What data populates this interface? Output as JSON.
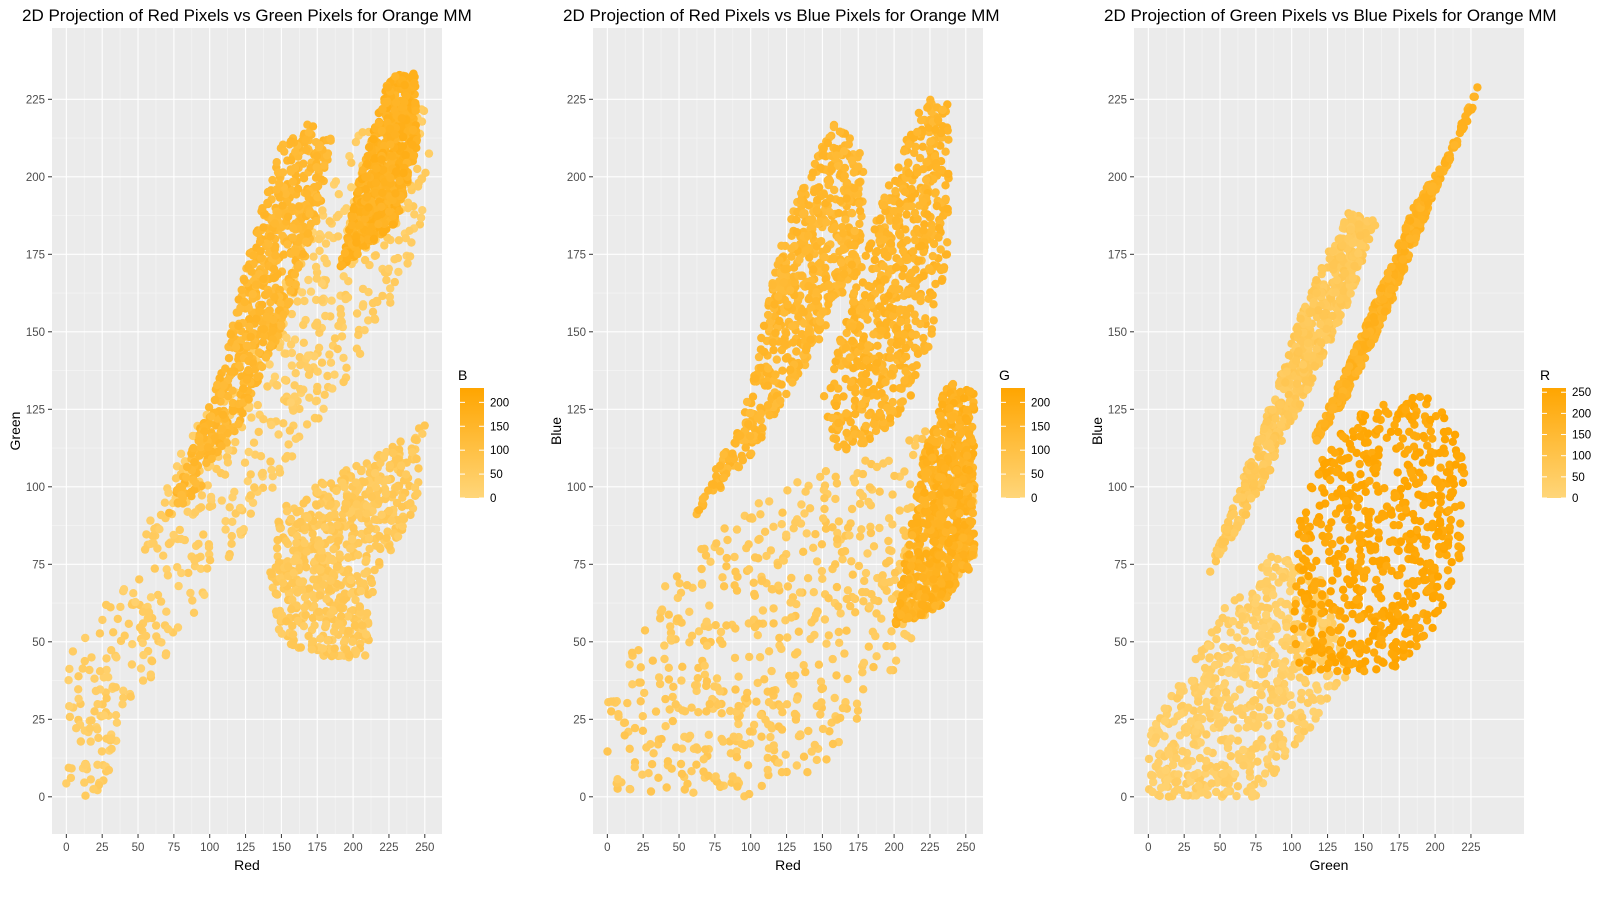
{
  "colors": {
    "low": "#ffd67a",
    "high": "#ffa500",
    "panel_bg": "#ebebeb",
    "grid": "#ffffff"
  },
  "chart_data": [
    {
      "type": "scatter",
      "title": "2D Projection of Red Pixels vs Green Pixels for Orange MM",
      "xlabel": "Red",
      "ylabel": "Green",
      "xlim": [
        -10,
        262
      ],
      "ylim": [
        -12,
        248
      ],
      "xticks": [
        0,
        25,
        50,
        75,
        100,
        125,
        150,
        175,
        200,
        225,
        250
      ],
      "yticks": [
        0,
        25,
        50,
        75,
        100,
        125,
        150,
        175,
        200,
        225
      ],
      "grid": true,
      "color_legend": {
        "title": "B",
        "min": 0,
        "max": 230,
        "ticks": [
          0,
          50,
          100,
          150,
          200
        ],
        "position": "right"
      },
      "clusters": [
        {
          "polygon": [
            [
              0,
              0
            ],
            [
              22,
              0
            ],
            [
              60,
              38
            ],
            [
              120,
              82
            ],
            [
              180,
              120
            ],
            [
              240,
              170
            ],
            [
              256,
              200
            ],
            [
              256,
              220
            ],
            [
              240,
              225
            ],
            [
              205,
              215
            ],
            [
              160,
              175
            ],
            [
              120,
              140
            ],
            [
              80,
              112
            ],
            [
              40,
              70
            ],
            [
              0,
              45
            ]
          ],
          "color": 40
        },
        {
          "polygon": [
            [
              70,
              90
            ],
            [
              110,
              140
            ],
            [
              130,
              180
            ],
            [
              150,
              210
            ],
            [
              170,
              218
            ],
            [
              185,
              212
            ],
            [
              175,
              185
            ],
            [
              150,
              150
            ],
            [
              120,
              120
            ],
            [
              95,
              100
            ]
          ],
          "color": 140
        },
        {
          "polygon": [
            [
              190,
              170
            ],
            [
              205,
              200
            ],
            [
              225,
              232
            ],
            [
              243,
              234
            ],
            [
              245,
              210
            ],
            [
              230,
              185
            ]
          ],
          "color": 170
        },
        {
          "polygon": [
            [
              150,
              95
            ],
            [
              215,
              110
            ],
            [
              250,
              120
            ],
            [
              245,
              95
            ],
            [
              215,
              70
            ],
            [
              210,
              45
            ],
            [
              180,
              45
            ],
            [
              150,
              50
            ],
            [
              140,
              70
            ]
          ],
          "color": 60
        }
      ]
    },
    {
      "type": "scatter",
      "title": "2D Projection of Red Pixels vs Blue Pixels for Orange MM",
      "xlabel": "Red",
      "ylabel": "Blue",
      "xlim": [
        -10,
        262
      ],
      "ylim": [
        -12,
        248
      ],
      "xticks": [
        0,
        25,
        50,
        75,
        100,
        125,
        150,
        175,
        200,
        225,
        250
      ],
      "yticks": [
        0,
        25,
        50,
        75,
        100,
        125,
        150,
        175,
        200,
        225
      ],
      "grid": true,
      "color_legend": {
        "title": "G",
        "min": 0,
        "max": 230,
        "ticks": [
          0,
          50,
          100,
          150,
          200
        ],
        "position": "right"
      },
      "clusters": [
        {
          "polygon": [
            [
              0,
              0
            ],
            [
              100,
              0
            ],
            [
              150,
              10
            ],
            [
              200,
              40
            ],
            [
              230,
              60
            ],
            [
              256,
              75
            ],
            [
              256,
              110
            ],
            [
              230,
              120
            ],
            [
              190,
              110
            ],
            [
              140,
              105
            ],
            [
              90,
              90
            ],
            [
              40,
              70
            ],
            [
              0,
              30
            ]
          ],
          "color": 60
        },
        {
          "polygon": [
            [
              200,
              55
            ],
            [
              230,
              60
            ],
            [
              256,
              75
            ],
            [
              256,
              130
            ],
            [
              238,
              135
            ],
            [
              220,
              110
            ]
          ],
          "color": 170
        },
        {
          "polygon": [
            [
              60,
              90
            ],
            [
              100,
              130
            ],
            [
              120,
              180
            ],
            [
              160,
              220
            ],
            [
              180,
              205
            ],
            [
              175,
              170
            ],
            [
              140,
              140
            ],
            [
              100,
              110
            ]
          ],
          "color": 140
        },
        {
          "polygon": [
            [
              150,
              130
            ],
            [
              190,
              190
            ],
            [
              220,
              225
            ],
            [
              238,
              225
            ],
            [
              238,
              175
            ],
            [
              220,
              135
            ],
            [
              190,
              115
            ],
            [
              160,
              110
            ]
          ],
          "color": 150
        }
      ]
    },
    {
      "type": "scatter",
      "title": "2D Projection of Green Pixels vs Blue Pixels for Orange MM",
      "xlabel": "Green",
      "ylabel": "Blue",
      "xlim": [
        -10,
        262
      ],
      "ylim": [
        -12,
        248
      ],
      "xticks": [
        0,
        25,
        50,
        75,
        100,
        125,
        150,
        175,
        200,
        225
      ],
      "yticks": [
        0,
        25,
        50,
        75,
        100,
        125,
        150,
        175,
        200,
        225
      ],
      "grid": true,
      "color_legend": {
        "title": "R",
        "min": 0,
        "max": 260,
        "ticks": [
          0,
          50,
          100,
          150,
          200,
          250
        ],
        "position": "right"
      },
      "clusters": [
        {
          "polygon": [
            [
              0,
              0
            ],
            [
              75,
              0
            ],
            [
              110,
              20
            ],
            [
              140,
              40
            ],
            [
              120,
              70
            ],
            [
              90,
              80
            ],
            [
              50,
              60
            ],
            [
              0,
              20
            ]
          ],
          "color": 40
        },
        {
          "polygon": [
            [
              40,
              70
            ],
            [
              80,
              120
            ],
            [
              110,
              160
            ],
            [
              140,
              190
            ],
            [
              160,
              185
            ],
            [
              140,
              160
            ],
            [
              110,
              130
            ],
            [
              80,
              100
            ]
          ],
          "color": 70
        },
        {
          "polygon": [
            [
              110,
              110
            ],
            [
              150,
              150
            ],
            [
              185,
              190
            ],
            [
              210,
              208
            ],
            [
              232,
              232
            ],
            [
              225,
              220
            ],
            [
              200,
              195
            ],
            [
              170,
              160
            ],
            [
              140,
              130
            ]
          ],
          "color": 190
        },
        {
          "polygon": [
            [
              100,
              40
            ],
            [
              130,
              40
            ],
            [
              170,
              40
            ],
            [
              200,
              55
            ],
            [
              220,
              80
            ],
            [
              222,
              110
            ],
            [
              200,
              130
            ],
            [
              160,
              128
            ],
            [
              125,
              115
            ],
            [
              105,
              90
            ]
          ],
          "color": 245
        }
      ]
    }
  ]
}
